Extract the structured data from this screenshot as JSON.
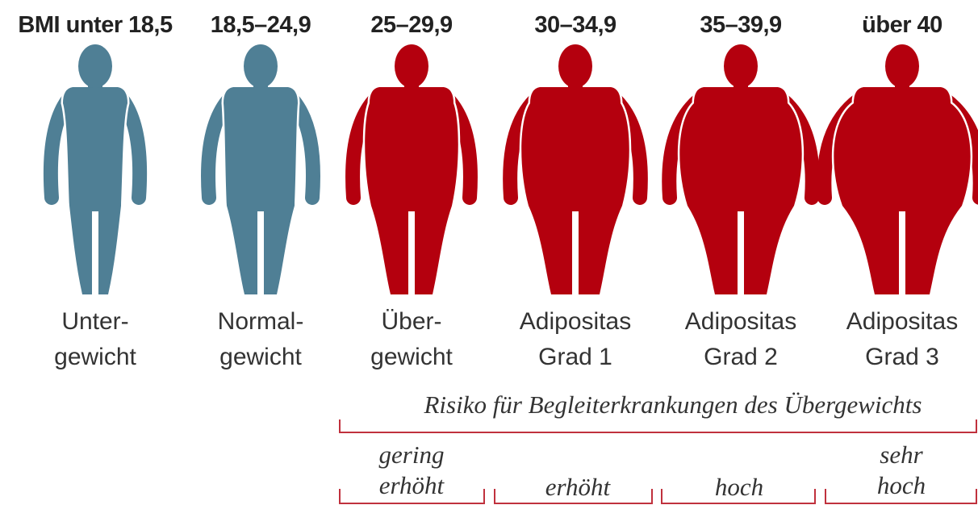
{
  "columns": [
    {
      "bmi": "BMI unter 18,5",
      "label": [
        "Unter-",
        "gewicht"
      ]
    },
    {
      "bmi": "18,5–24,9",
      "label": [
        "Normal-",
        "gewicht"
      ]
    },
    {
      "bmi": "25–29,9",
      "label": [
        "Über-",
        "gewicht"
      ]
    },
    {
      "bmi": "30–34,9",
      "label": [
        "Adipositas",
        "Grad 1"
      ]
    },
    {
      "bmi": "35–39,9",
      "label": [
        "Adipositas",
        "Grad 2"
      ]
    },
    {
      "bmi": "über 40",
      "label": [
        "Adipositas",
        "Grad 3"
      ]
    }
  ],
  "risk": {
    "title": "Risiko für Begleiterkrankungen des Übergewichts",
    "levels": [
      [
        "gering",
        "erhöht"
      ],
      [
        "erhöht"
      ],
      [
        "hoch"
      ],
      [
        "sehr",
        "hoch"
      ]
    ]
  }
}
